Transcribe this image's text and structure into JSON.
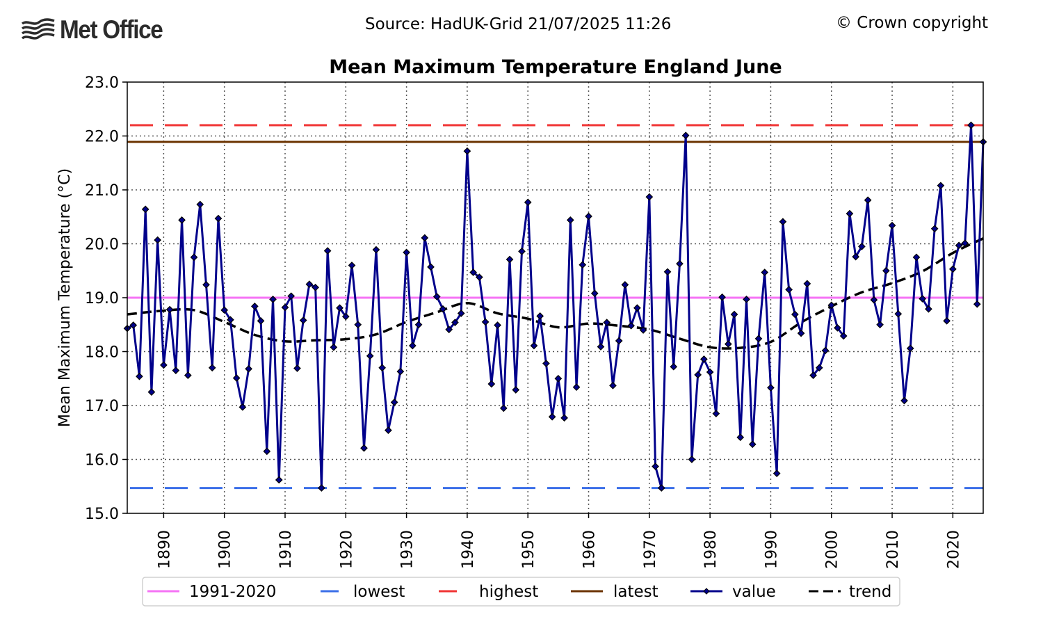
{
  "header": {
    "logo_text": "Met Office",
    "source": "Source: HadUK-Grid 21/07/2025 11:26",
    "copyright": "© Crown copyright"
  },
  "chart_data": {
    "type": "line",
    "title": "Mean Maximum Temperature England June",
    "xlabel": "",
    "ylabel": "Mean Maximum Temperature (°C)",
    "ylim": [
      15.0,
      23.0
    ],
    "xlim": [
      1884,
      2025
    ],
    "yticks": [
      "15.0",
      "16.0",
      "17.0",
      "18.0",
      "19.0",
      "20.0",
      "21.0",
      "22.0",
      "23.0"
    ],
    "ytick_values": [
      15,
      16,
      17,
      18,
      19,
      20,
      21,
      22,
      23
    ],
    "xticks": [
      "1890",
      "1900",
      "1910",
      "1920",
      "1930",
      "1940",
      "1950",
      "1960",
      "1970",
      "1980",
      "1990",
      "2000",
      "2010",
      "2020"
    ],
    "xtick_values": [
      1890,
      1900,
      1910,
      1920,
      1930,
      1940,
      1950,
      1960,
      1970,
      1980,
      1990,
      2000,
      2010,
      2020
    ],
    "grid": true,
    "legend_position": "bottom",
    "reference_lines": {
      "baseline_1991_2020": 19.0,
      "lowest": 15.47,
      "highest": 22.2,
      "latest": 21.89
    },
    "colors": {
      "baseline": "#f573f5",
      "lowest": "#3a6ee8",
      "highest": "#f03434",
      "latest": "#6b3300",
      "value": "#00008b",
      "trend": "#000000"
    },
    "legend": [
      {
        "key": "baseline",
        "label": "1991-2020",
        "style": "solid"
      },
      {
        "key": "lowest",
        "label": "lowest",
        "style": "dashed"
      },
      {
        "key": "highest",
        "label": "highest",
        "style": "dashed"
      },
      {
        "key": "latest",
        "label": "latest",
        "style": "solid"
      },
      {
        "key": "value",
        "label": "value",
        "style": "marker"
      },
      {
        "key": "trend",
        "label": "trend",
        "style": "dashed"
      }
    ],
    "x_start": 1884,
    "series": [
      {
        "name": "value",
        "values": [
          18.43,
          18.49,
          17.54,
          20.64,
          17.25,
          20.07,
          17.75,
          18.78,
          17.65,
          20.44,
          17.56,
          19.75,
          20.73,
          19.24,
          17.7,
          20.47,
          18.77,
          18.59,
          17.51,
          16.97,
          17.68,
          18.84,
          18.57,
          16.15,
          18.97,
          15.62,
          18.82,
          19.03,
          17.69,
          18.58,
          19.25,
          19.19,
          15.47,
          19.87,
          18.08,
          18.81,
          18.65,
          19.6,
          18.5,
          16.21,
          17.92,
          19.89,
          17.7,
          16.54,
          17.06,
          17.63,
          19.84,
          18.11,
          18.5,
          20.11,
          19.57,
          19.02,
          18.79,
          18.41,
          18.54,
          18.71,
          21.72,
          19.47,
          19.38,
          18.55,
          17.4,
          18.49,
          16.95,
          19.71,
          17.29,
          19.86,
          20.77,
          18.11,
          18.66,
          17.78,
          16.79,
          17.5,
          16.77,
          20.44,
          17.34,
          19.61,
          20.51,
          19.08,
          18.09,
          18.54,
          17.37,
          18.2,
          19.24,
          18.48,
          18.81,
          18.4,
          20.87,
          15.87,
          15.47,
          19.48,
          17.72,
          19.63,
          22.01,
          16.0,
          17.57,
          17.86,
          17.62,
          16.85,
          19.01,
          18.14,
          18.69,
          16.41,
          18.97,
          16.28,
          18.24,
          19.47,
          17.33,
          15.74,
          20.41,
          19.15,
          18.69,
          18.34,
          19.26,
          17.56,
          17.7,
          18.02,
          18.86,
          18.44,
          18.29,
          20.56,
          19.76,
          19.95,
          20.81,
          18.96,
          18.5,
          19.5,
          20.34,
          18.7,
          17.09,
          18.06,
          19.75,
          18.98,
          18.79,
          20.28,
          21.08,
          18.57,
          19.53,
          19.97,
          20.01,
          22.2,
          18.88,
          21.89
        ]
      },
      {
        "name": "trend",
        "x": [
          1884,
          1890,
          1895,
          1900,
          1905,
          1910,
          1915,
          1920,
          1925,
          1930,
          1935,
          1940,
          1945,
          1950,
          1955,
          1960,
          1965,
          1970,
          1975,
          1980,
          1985,
          1990,
          1995,
          2000,
          2005,
          2010,
          2015,
          2020,
          2025
        ],
        "values": [
          18.69,
          18.76,
          18.77,
          18.55,
          18.31,
          18.19,
          18.21,
          18.23,
          18.32,
          18.55,
          18.73,
          18.9,
          18.71,
          18.61,
          18.45,
          18.52,
          18.48,
          18.41,
          18.24,
          18.08,
          18.07,
          18.18,
          18.54,
          18.84,
          19.1,
          19.27,
          19.49,
          19.83,
          20.1
        ]
      }
    ]
  }
}
